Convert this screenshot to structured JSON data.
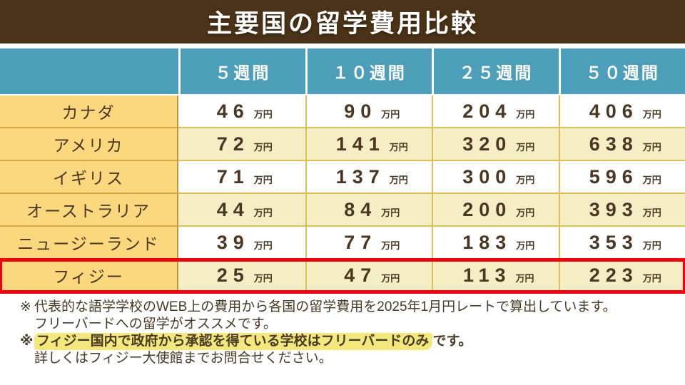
{
  "chart_data": {
    "type": "table",
    "title": "主要国の留学費用比較",
    "unit": "万円",
    "columns": [
      "５週間",
      "１０週間",
      "２５週間",
      "５０週間"
    ],
    "rows": [
      {
        "name": "カナダ",
        "values": [
          46,
          90,
          204,
          406
        ]
      },
      {
        "name": "アメリカ",
        "values": [
          72,
          141,
          320,
          638
        ]
      },
      {
        "name": "イギリス",
        "values": [
          71,
          137,
          300,
          596
        ]
      },
      {
        "name": "オーストラリア",
        "values": [
          44,
          84,
          200,
          393
        ]
      },
      {
        "name": "ニュージーランド",
        "values": [
          39,
          77,
          183,
          353
        ]
      },
      {
        "name": "フィジー",
        "values": [
          25,
          47,
          113,
          223
        ]
      }
    ],
    "emphasized_row": "フィジー",
    "emphasis_style": "red-outline"
  },
  "notes": {
    "marker": "※",
    "line1": "代表的な語学学校のWEB上の費用から各国の留学費用を2025年1月円レートで算出しています。",
    "line2": "フリーバードへの留学がオススメです。",
    "line3_highlighted": "フィジー国内で政府から承認を得ている学校はフリーバードのみ",
    "line3_tail": "です。",
    "line4": "詳しくはフィジー大使館までお問合せください。"
  },
  "colors": {
    "title_bar_bg": "#4A3317",
    "title_text": "#FFFFFF",
    "header_bg": "#4D9EB9",
    "header_text": "#FFFFFF",
    "label_bg": "#FBD87E",
    "stripe_cream": "#F5EEC5",
    "stripe_white": "#FFFFFF",
    "cell_border_gold": "#DDBD55",
    "label_border_gold": "#C0953B",
    "text_brown": "#4A3622",
    "emphasis_red": "#EE0011",
    "note_highlight": "#F3E87E"
  }
}
